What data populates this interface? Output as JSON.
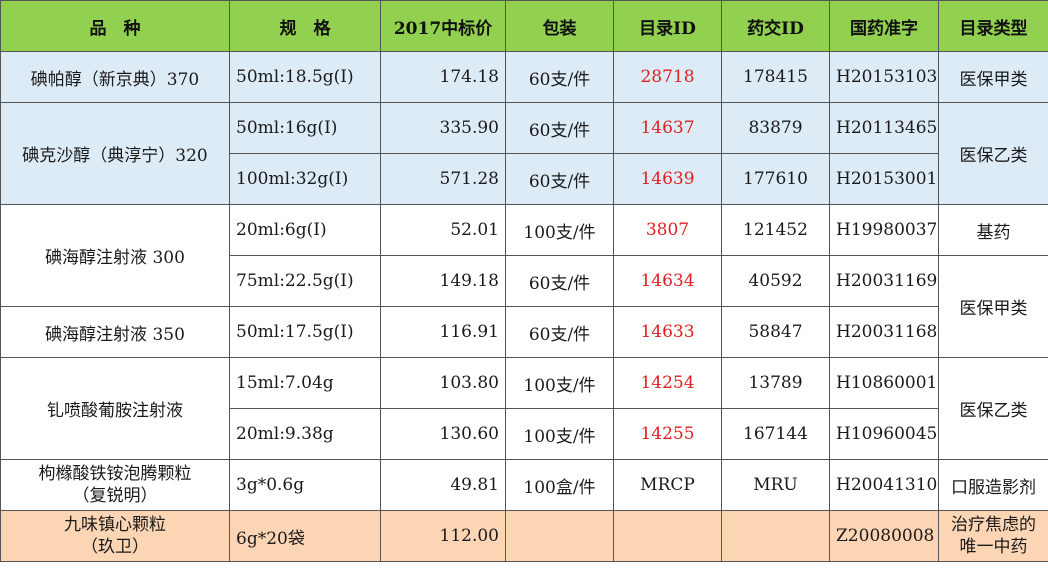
{
  "headers": [
    "品　种",
    "规　格",
    "2017中标价",
    "包装",
    "目录ID",
    "药交ID",
    "国药准字",
    "目录类型"
  ],
  "rows": {
    "r1": {
      "name": "碘帕醇（新京典）370",
      "spec": "50ml:18.5g(I)",
      "price": "174.18",
      "pack": "60支/件",
      "catalog_id": "28718",
      "trade_id": "178415",
      "approval": "H20153103",
      "type": "医保甲类"
    },
    "r2": {
      "name": "碘克沙醇（典淳宁）320",
      "spec": "50ml:16g(I)",
      "price": "335.90",
      "pack": "60支/件",
      "catalog_id": "14637",
      "trade_id": "83879",
      "approval": "H20113465",
      "type": "医保乙类"
    },
    "r3": {
      "spec": "100ml:32g(I)",
      "price": "571.28",
      "pack": "60支/件",
      "catalog_id": "14639",
      "trade_id": "177610",
      "approval": "H20153001"
    },
    "r4": {
      "name": "碘海醇注射液 300",
      "spec": "20ml:6g(I)",
      "price": "52.01",
      "pack": "100支/件",
      "catalog_id": "3807",
      "trade_id": "121452",
      "approval": "H19980037",
      "type": "基药"
    },
    "r5": {
      "spec": "75ml:22.5g(I)",
      "price": "149.18",
      "pack": "60支/件",
      "catalog_id": "14634",
      "trade_id": "40592",
      "approval": "H20031169",
      "type": "医保甲类"
    },
    "r6": {
      "name": "碘海醇注射液 350",
      "spec": "50ml:17.5g(I)",
      "price": "116.91",
      "pack": "60支/件",
      "catalog_id": "14633",
      "trade_id": "58847",
      "approval": "H20031168"
    },
    "r7": {
      "name": "钆喷酸葡胺注射液",
      "spec": "15ml:7.04g",
      "price": "103.80",
      "pack": "100支/件",
      "catalog_id": "14254",
      "trade_id": "13789",
      "approval": "H10860001",
      "type": "医保乙类"
    },
    "r8": {
      "spec": "20ml:9.38g",
      "price": "130.60",
      "pack": "100支/件",
      "catalog_id": "14255",
      "trade_id": "167144",
      "approval": "H10960045"
    },
    "r9": {
      "name_line1": "枸橼酸铁铵泡腾颗粒",
      "name_line2": "（复锐明）",
      "spec": "3g*0.6g",
      "price": "49.81",
      "pack": "100盒/件",
      "catalog_id": "MRCP",
      "trade_id": "MRU",
      "approval": "H20041310",
      "type": "口服造影剂"
    },
    "r10": {
      "name_line1": "九味镇心颗粒",
      "name_line2": "（玖卫）",
      "spec": "6g*20袋",
      "price": "112.00",
      "pack": "",
      "catalog_id": "",
      "trade_id": "",
      "approval": "Z20080008",
      "type_line1": "治疗焦虑的",
      "type_line2": "唯一中药"
    }
  },
  "colors": {
    "header_bg": "#92d050",
    "blue_row_bg": "#ddebf7",
    "peach_row_bg": "#fcd5b4",
    "catalog_id_text": "#e02020"
  }
}
